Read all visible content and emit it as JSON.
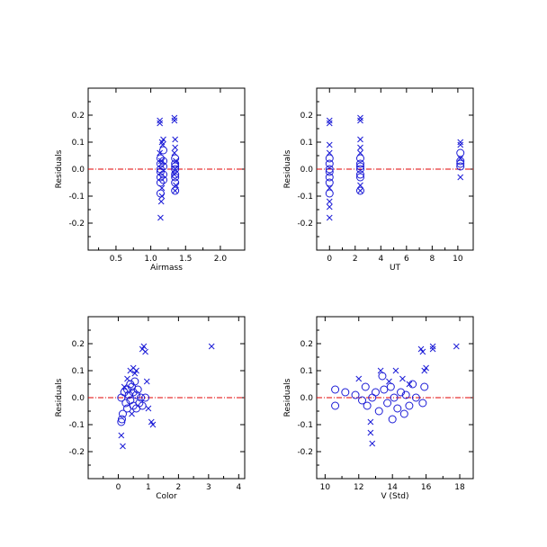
{
  "chart_data": [
    {
      "type": "scatter",
      "id": "airmass",
      "xlabel": "Airmass",
      "ylabel": "Residuals",
      "xlim": [
        0.1,
        2.35
      ],
      "ylim": [
        -0.3,
        0.3
      ],
      "xticks": [
        0.5,
        1.0,
        1.5,
        2.0
      ],
      "xtick_labels": [
        "0.5",
        "1.0",
        "1.5",
        "2.0"
      ],
      "yticks": [
        -0.2,
        -0.1,
        0.0,
        0.1,
        0.2
      ],
      "ytick_labels": [
        "-0.2",
        "-0.1",
        "0.0",
        "0.1",
        "0.2"
      ],
      "zero_line": 0,
      "series": [
        {
          "marker": "circle",
          "points": [
            [
              1.14,
              -0.09
            ],
            [
              1.14,
              -0.05
            ],
            [
              1.14,
              -0.03
            ],
            [
              1.14,
              0.0
            ],
            [
              1.14,
              0.02
            ],
            [
              1.14,
              0.04
            ],
            [
              1.14,
              -0.01
            ],
            [
              1.18,
              0.07
            ],
            [
              1.18,
              0.03
            ],
            [
              1.18,
              -0.02
            ],
            [
              1.18,
              -0.04
            ],
            [
              1.18,
              0.01
            ],
            [
              1.35,
              -0.08
            ],
            [
              1.35,
              -0.03
            ],
            [
              1.35,
              0.0
            ],
            [
              1.35,
              0.02
            ],
            [
              1.35,
              0.01
            ],
            [
              1.35,
              -0.02
            ],
            [
              1.35,
              0.04
            ],
            [
              1.35,
              -0.05
            ]
          ]
        },
        {
          "marker": "cross",
          "points": [
            [
              1.13,
              0.18
            ],
            [
              1.13,
              0.17
            ],
            [
              1.16,
              0.1
            ],
            [
              1.15,
              -0.12
            ],
            [
              1.14,
              -0.18
            ],
            [
              1.16,
              -0.1
            ],
            [
              1.17,
              0.09
            ],
            [
              1.13,
              0.06
            ],
            [
              1.18,
              0.11
            ],
            [
              1.15,
              0.03
            ],
            [
              1.16,
              -0.07
            ],
            [
              1.34,
              0.19
            ],
            [
              1.34,
              0.18
            ],
            [
              1.35,
              0.11
            ],
            [
              1.35,
              0.08
            ],
            [
              1.34,
              0.06
            ],
            [
              1.36,
              -0.06
            ],
            [
              1.35,
              -0.08
            ],
            [
              1.35,
              0.0
            ],
            [
              1.36,
              0.03
            ],
            [
              1.34,
              -0.02
            ]
          ]
        }
      ]
    },
    {
      "type": "scatter",
      "id": "ut",
      "xlabel": "UT",
      "ylabel": "Residuals",
      "xlim": [
        -1.0,
        11.2
      ],
      "ylim": [
        -0.3,
        0.3
      ],
      "xticks": [
        0,
        2,
        4,
        6,
        8,
        10
      ],
      "xtick_labels": [
        "0",
        "2",
        "4",
        "6",
        "8",
        "10"
      ],
      "yticks": [
        -0.2,
        -0.1,
        0.0,
        0.1,
        0.2
      ],
      "ytick_labels": [
        "-0.2",
        "-0.1",
        "0.0",
        "0.1",
        "0.2"
      ],
      "zero_line": 0,
      "series": [
        {
          "marker": "circle",
          "points": [
            [
              0.0,
              -0.09
            ],
            [
              0.0,
              -0.05
            ],
            [
              0.0,
              -0.03
            ],
            [
              0.0,
              0.0
            ],
            [
              0.0,
              0.02
            ],
            [
              0.0,
              0.04
            ],
            [
              0.0,
              -0.01
            ],
            [
              2.4,
              -0.08
            ],
            [
              2.4,
              -0.03
            ],
            [
              2.4,
              0.0
            ],
            [
              2.4,
              0.02
            ],
            [
              2.4,
              0.01
            ],
            [
              2.4,
              -0.02
            ],
            [
              2.4,
              0.04
            ],
            [
              10.2,
              0.06
            ],
            [
              10.2,
              0.03
            ],
            [
              10.2,
              0.01
            ],
            [
              10.2,
              0.02
            ]
          ]
        },
        {
          "marker": "cross",
          "points": [
            [
              0.0,
              0.18
            ],
            [
              0.0,
              0.17
            ],
            [
              0.0,
              -0.12
            ],
            [
              0.0,
              -0.18
            ],
            [
              0.0,
              -0.14
            ],
            [
              0.0,
              0.06
            ],
            [
              0.0,
              0.09
            ],
            [
              0.0,
              -0.07
            ],
            [
              2.4,
              0.19
            ],
            [
              2.4,
              0.18
            ],
            [
              2.4,
              0.11
            ],
            [
              2.4,
              0.08
            ],
            [
              2.4,
              -0.06
            ],
            [
              2.4,
              -0.08
            ],
            [
              2.4,
              0.06
            ],
            [
              10.2,
              0.1
            ],
            [
              10.2,
              0.09
            ],
            [
              10.2,
              -0.03
            ],
            [
              10.2,
              0.04
            ]
          ]
        }
      ]
    },
    {
      "type": "scatter",
      "id": "color",
      "xlabel": "Color",
      "ylabel": "Residuals",
      "xlim": [
        -1.0,
        4.2
      ],
      "ylim": [
        -0.3,
        0.3
      ],
      "xticks": [
        0,
        1,
        2,
        3,
        4
      ],
      "xtick_labels": [
        "0",
        "1",
        "2",
        "3",
        "4"
      ],
      "yticks": [
        -0.2,
        -0.1,
        0.0,
        0.1,
        0.2
      ],
      "ytick_labels": [
        "-0.2",
        "-0.1",
        "0.0",
        "0.1",
        "0.2"
      ],
      "zero_line": 0,
      "series": [
        {
          "marker": "circle",
          "points": [
            [
              0.1,
              -0.09
            ],
            [
              0.12,
              -0.08
            ],
            [
              0.15,
              -0.06
            ],
            [
              0.1,
              0.0
            ],
            [
              0.2,
              0.02
            ],
            [
              0.25,
              -0.02
            ],
            [
              0.3,
              0.03
            ],
            [
              0.35,
              0.01
            ],
            [
              0.4,
              -0.01
            ],
            [
              0.45,
              0.04
            ],
            [
              0.5,
              0.02
            ],
            [
              0.5,
              -0.03
            ],
            [
              0.55,
              0.06
            ],
            [
              0.6,
              0.01
            ],
            [
              0.6,
              -0.04
            ],
            [
              0.65,
              0.03
            ],
            [
              0.7,
              -0.02
            ],
            [
              0.75,
              0.0
            ],
            [
              0.8,
              -0.03
            ],
            [
              0.9,
              0.0
            ],
            [
              0.3,
              -0.04
            ],
            [
              0.4,
              0.05
            ]
          ]
        },
        {
          "marker": "cross",
          "points": [
            [
              0.1,
              -0.14
            ],
            [
              0.15,
              -0.18
            ],
            [
              0.3,
              0.07
            ],
            [
              0.4,
              0.1
            ],
            [
              0.5,
              0.11
            ],
            [
              0.55,
              0.09
            ],
            [
              0.6,
              0.1
            ],
            [
              0.8,
              0.18
            ],
            [
              0.85,
              0.19
            ],
            [
              0.9,
              0.17
            ],
            [
              0.95,
              0.06
            ],
            [
              1.0,
              -0.04
            ],
            [
              1.1,
              -0.09
            ],
            [
              1.15,
              -0.1
            ],
            [
              3.1,
              0.19
            ],
            [
              0.2,
              0.04
            ],
            [
              0.45,
              -0.06
            ]
          ]
        }
      ]
    },
    {
      "type": "scatter",
      "id": "vstd",
      "xlabel": "V (Std)",
      "ylabel": "Residuals",
      "xlim": [
        9.5,
        18.8
      ],
      "ylim": [
        -0.3,
        0.3
      ],
      "xticks": [
        10,
        12,
        14,
        16,
        18
      ],
      "xtick_labels": [
        "10",
        "12",
        "14",
        "16",
        "18"
      ],
      "yticks": [
        -0.2,
        -0.1,
        0.0,
        0.1,
        0.2
      ],
      "ytick_labels": [
        "-0.2",
        "-0.1",
        "0.0",
        "0.1",
        "0.2"
      ],
      "zero_line": 0,
      "series": [
        {
          "marker": "circle",
          "points": [
            [
              10.6,
              -0.03
            ],
            [
              10.6,
              0.03
            ],
            [
              11.2,
              0.02
            ],
            [
              11.8,
              0.01
            ],
            [
              12.2,
              -0.01
            ],
            [
              12.4,
              0.04
            ],
            [
              12.5,
              -0.03
            ],
            [
              12.8,
              0.0
            ],
            [
              13.0,
              0.02
            ],
            [
              13.2,
              -0.05
            ],
            [
              13.5,
              0.03
            ],
            [
              13.7,
              -0.02
            ],
            [
              13.9,
              0.04
            ],
            [
              14.1,
              0.0
            ],
            [
              14.3,
              -0.04
            ],
            [
              14.5,
              0.02
            ],
            [
              14.7,
              -0.06
            ],
            [
              14.8,
              0.01
            ],
            [
              15.0,
              -0.03
            ],
            [
              15.2,
              0.05
            ],
            [
              15.4,
              0.0
            ],
            [
              15.8,
              -0.02
            ],
            [
              15.9,
              0.04
            ],
            [
              14.0,
              -0.08
            ],
            [
              13.4,
              0.08
            ]
          ]
        },
        {
          "marker": "cross",
          "points": [
            [
              12.0,
              0.07
            ],
            [
              12.7,
              -0.09
            ],
            [
              12.7,
              -0.13
            ],
            [
              12.8,
              -0.17
            ],
            [
              13.3,
              0.1
            ],
            [
              14.2,
              0.1
            ],
            [
              14.6,
              0.07
            ],
            [
              15.0,
              0.05
            ],
            [
              15.7,
              0.18
            ],
            [
              15.8,
              0.17
            ],
            [
              15.9,
              0.1
            ],
            [
              16.0,
              0.11
            ],
            [
              16.4,
              0.18
            ],
            [
              16.4,
              0.19
            ],
            [
              17.8,
              0.19
            ],
            [
              13.8,
              0.06
            ]
          ]
        }
      ]
    }
  ],
  "colors": {
    "points": "#1a1ad6",
    "zero_line": "#e00000",
    "axes": "#000000"
  }
}
